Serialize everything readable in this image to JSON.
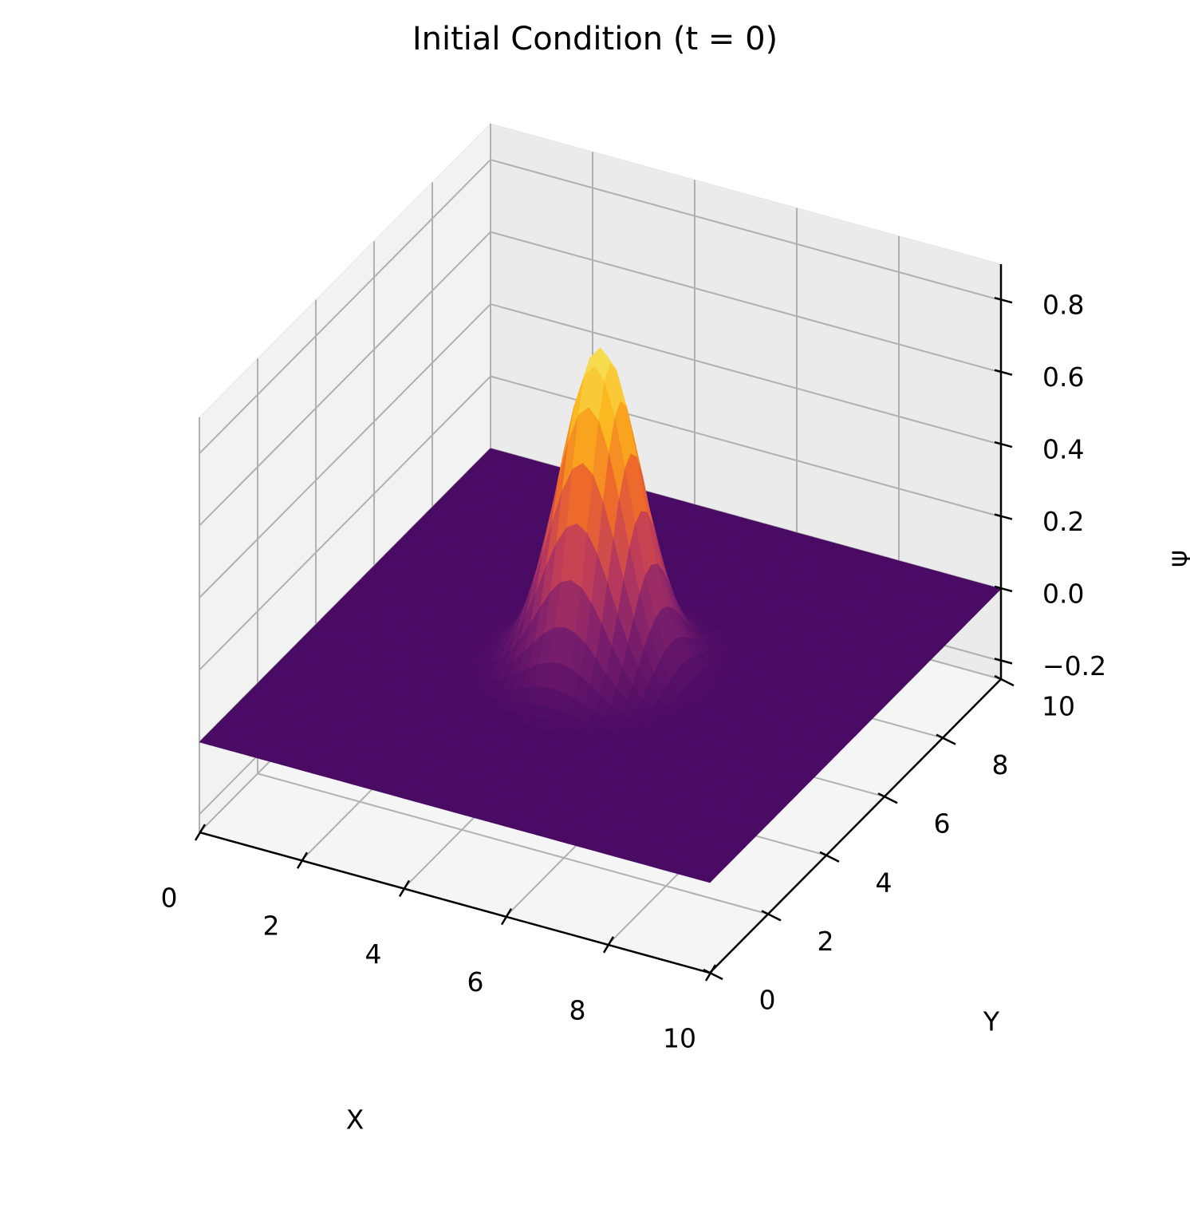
{
  "chart_data": {
    "type": "surface3d",
    "title": "Initial Condition (t = 0)",
    "xlabel": "X",
    "ylabel": "Y",
    "zlabel": "ψ",
    "xlim": [
      0,
      10
    ],
    "ylim": [
      0,
      10
    ],
    "zlim": [
      -0.25,
      0.9
    ],
    "xticks": [
      0,
      2,
      4,
      6,
      8,
      10
    ],
    "yticks": [
      0,
      2,
      4,
      6,
      8,
      10
    ],
    "zticks": [
      -0.2,
      0.0,
      0.2,
      0.4,
      0.6,
      0.8
    ],
    "xtick_labels": [
      "0",
      "2",
      "4",
      "6",
      "8",
      "10"
    ],
    "ytick_labels": [
      "0",
      "2",
      "4",
      "6",
      "8",
      "10"
    ],
    "ztick_labels": [
      "−0.2",
      "0.0",
      "0.2",
      "0.4",
      "0.6",
      "0.8"
    ],
    "surface": {
      "function": "gaussian_bump",
      "amplitude": 0.88,
      "center": [
        5,
        5
      ],
      "sigma": 0.7,
      "grid_n": 50,
      "colormap": "inferno-like",
      "colors": [
        "#4a0b65",
        "#7d1f6d",
        "#c13d5a",
        "#ef6b2b",
        "#fcb31a",
        "#f6e55c"
      ]
    },
    "pane_colors": {
      "left": "#f2f2f2",
      "back": "#ebebeb",
      "floor": "#f5f5f5"
    },
    "grid": true
  }
}
